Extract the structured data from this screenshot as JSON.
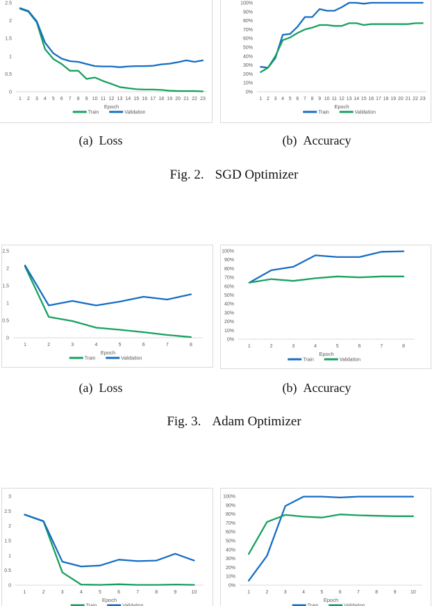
{
  "figures": {
    "fig2": {
      "sub_a_prefix": "(a)",
      "sub_a_title": "Loss",
      "sub_b_prefix": "(b)",
      "sub_b_title": "Accuracy",
      "caption_prefix": "Fig. 2.",
      "caption_title": "SGD Optimizer"
    },
    "fig3": {
      "sub_a_prefix": "(a)",
      "sub_a_title": "Loss",
      "sub_b_prefix": "(b)",
      "sub_b_title": "Accuracy",
      "caption_prefix": "Fig. 3.",
      "caption_title": "Adam Optimizer"
    }
  },
  "colors": {
    "train_green": "#17a05c",
    "validation_blue": "#156dc4",
    "axis_line": "#d9d9d9",
    "tick_text": "#595959",
    "box_border": "#d9d9d9"
  },
  "chart_data": [
    {
      "id": "sgd-loss",
      "type": "line",
      "xlabel": "Epoch",
      "grid": false,
      "legend_position": "bottom",
      "x": [
        1,
        2,
        3,
        4,
        5,
        6,
        7,
        8,
        9,
        10,
        11,
        12,
        13,
        14,
        15,
        16,
        17,
        18,
        19,
        20,
        21,
        22,
        23
      ],
      "y_min": 0,
      "y_max": 2.5,
      "y_step": 0.5,
      "y_format": "plain",
      "series": [
        {
          "name": "Train",
          "color_key": "train_green",
          "values": [
            2.33,
            2.25,
            1.95,
            1.2,
            0.92,
            0.78,
            0.59,
            0.59,
            0.36,
            0.4,
            0.3,
            0.22,
            0.13,
            0.1,
            0.07,
            0.06,
            0.06,
            0.05,
            0.03,
            0.02,
            0.02,
            0.02,
            0.01
          ]
        },
        {
          "name": "Validation",
          "color_key": "validation_blue",
          "values": [
            2.35,
            2.27,
            1.98,
            1.38,
            1.08,
            0.93,
            0.86,
            0.84,
            0.78,
            0.72,
            0.71,
            0.71,
            0.69,
            0.71,
            0.72,
            0.72,
            0.73,
            0.77,
            0.79,
            0.83,
            0.88,
            0.84,
            0.88
          ]
        }
      ]
    },
    {
      "id": "sgd-accuracy",
      "type": "line",
      "xlabel": "Epoch",
      "grid": false,
      "legend_position": "bottom",
      "x": [
        1,
        2,
        3,
        4,
        5,
        6,
        7,
        8,
        9,
        10,
        11,
        12,
        13,
        14,
        15,
        16,
        17,
        18,
        19,
        20,
        21,
        22,
        23
      ],
      "y_min": 0,
      "y_max": 100,
      "y_step": 10,
      "y_format": "percent",
      "series": [
        {
          "name": "Train",
          "color_key": "validation_blue",
          "values": [
            28,
            27,
            38,
            64,
            65,
            73,
            84,
            84,
            93,
            91,
            91,
            95,
            100,
            100,
            99,
            100,
            100,
            100,
            100,
            100,
            100,
            100,
            100
          ]
        },
        {
          "name": "Validation",
          "color_key": "train_green",
          "values": [
            22,
            27,
            40,
            58,
            61,
            66,
            70,
            72,
            75,
            75,
            74,
            74,
            77,
            77,
            75,
            76,
            76,
            76,
            76,
            76,
            76,
            77,
            77
          ]
        }
      ]
    },
    {
      "id": "adam-loss",
      "type": "line",
      "xlabel": "Epoch",
      "grid": false,
      "legend_position": "bottom",
      "x": [
        1,
        2,
        3,
        4,
        5,
        6,
        7,
        8
      ],
      "y_min": 0,
      "y_max": 2.5,
      "y_step": 0.5,
      "y_format": "plain",
      "series": [
        {
          "name": "Train",
          "color_key": "train_green",
          "values": [
            2.05,
            0.6,
            0.48,
            0.29,
            0.23,
            0.16,
            0.08,
            0.02
          ]
        },
        {
          "name": "Validation",
          "color_key": "validation_blue",
          "values": [
            2.08,
            0.93,
            1.06,
            0.93,
            1.04,
            1.18,
            1.1,
            1.25
          ]
        }
      ]
    },
    {
      "id": "adam-accuracy",
      "type": "line",
      "xlabel": "Epoch",
      "grid": false,
      "legend_position": "bottom",
      "x": [
        1,
        2,
        3,
        4,
        5,
        6,
        7,
        8
      ],
      "y_min": 0,
      "y_max": 100,
      "y_step": 10,
      "y_format": "percent",
      "series": [
        {
          "name": "Train",
          "color_key": "validation_blue",
          "values": [
            64,
            78,
            82,
            95,
            93,
            93,
            99,
            99.5
          ]
        },
        {
          "name": "Validation",
          "color_key": "train_green",
          "values": [
            64,
            68,
            66,
            69,
            71,
            70,
            71,
            71
          ]
        }
      ]
    },
    {
      "id": "third-loss",
      "type": "line",
      "xlabel": "Epoch",
      "grid": false,
      "legend_position": "bottom",
      "x": [
        1,
        2,
        3,
        4,
        5,
        6,
        7,
        8,
        9,
        10
      ],
      "y_min": 0,
      "y_max": 3,
      "y_step": 0.5,
      "y_format": "plain",
      "series": [
        {
          "name": "Train",
          "color_key": "train_green",
          "values": [
            2.38,
            2.15,
            0.43,
            0.02,
            0.01,
            0.03,
            0.01,
            0.01,
            0.02,
            0.01
          ]
        },
        {
          "name": "Validation",
          "color_key": "validation_blue",
          "values": [
            2.38,
            2.16,
            0.79,
            0.63,
            0.66,
            0.86,
            0.81,
            0.83,
            1.06,
            0.83
          ]
        }
      ]
    },
    {
      "id": "third-accuracy",
      "type": "line",
      "xlabel": "Epoch",
      "grid": false,
      "legend_position": "bottom",
      "x": [
        1,
        2,
        3,
        4,
        5,
        6,
        7,
        8,
        9,
        10
      ],
      "y_min": 0,
      "y_max": 100,
      "y_step": 10,
      "y_format": "percent",
      "series": [
        {
          "name": "Train",
          "color_key": "validation_blue",
          "values": [
            5,
            33,
            89,
            99.5,
            99.5,
            98.5,
            99.5,
            99.5,
            99.5,
            99.5
          ]
        },
        {
          "name": "Validation",
          "color_key": "train_green",
          "values": [
            35,
            71,
            79,
            77,
            76,
            79.5,
            78.5,
            78,
            77.5,
            77.5
          ]
        }
      ]
    }
  ]
}
